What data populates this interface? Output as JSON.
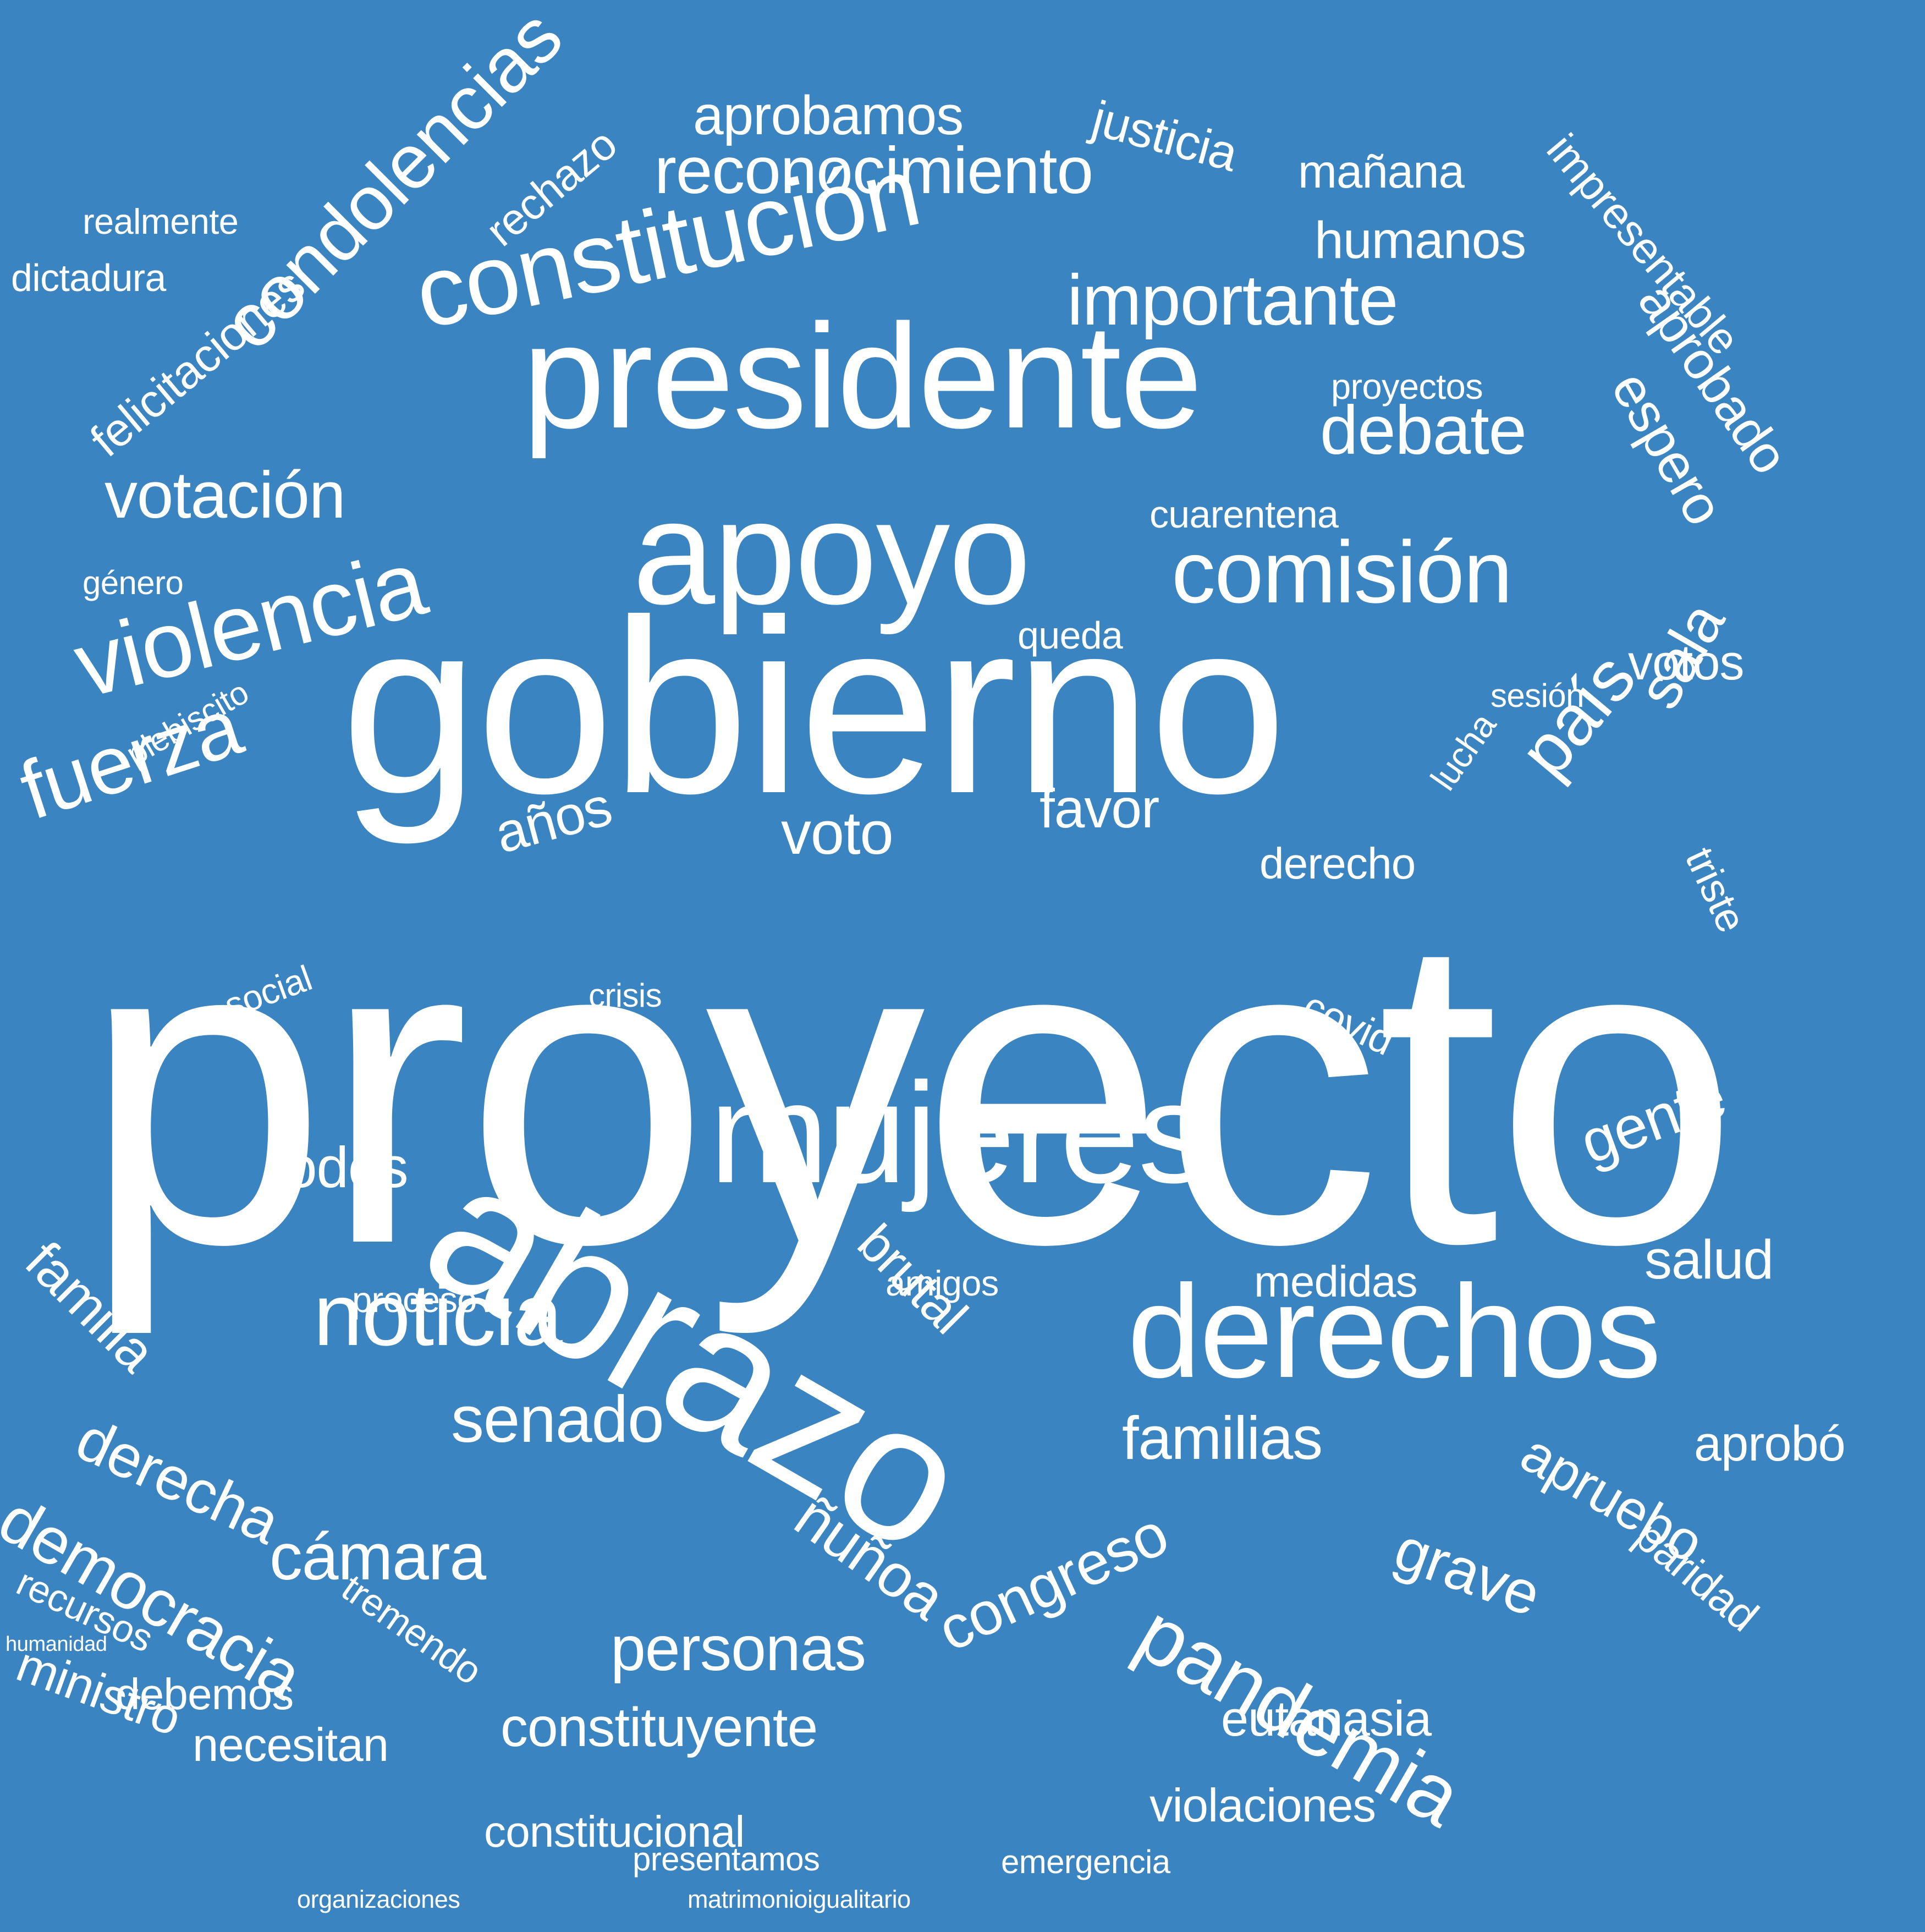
{
  "background_color": "#3a84c1",
  "text_color": "#ffffff",
  "words": [
    "proyecto",
    "gobierno",
    "abrazo",
    "presidente",
    "apoyo",
    "mujeres",
    "derechos",
    "constitución",
    "violencia",
    "comisión",
    "noticia",
    "fuerza",
    "importante",
    "condolencias",
    "reconocimiento",
    "debate",
    "votación",
    "país",
    "sala",
    "pandemia",
    "democracia",
    "derecha",
    "cámara",
    "ñuñoa",
    "congreso",
    "senado",
    "familias",
    "personas",
    "constituyente",
    "gente",
    "familia",
    "votos",
    "favor",
    "voto",
    "todos",
    "humanos",
    "aprobamos",
    "felicitaciones",
    "mañana",
    "espero",
    "aprobado",
    "impresentable",
    "justicia",
    "rechazo",
    "años",
    "salud",
    "apruebo",
    "triste",
    "paridad",
    "grave",
    "aprobó",
    "brutal",
    "medidas",
    "eutanasia",
    "necesitan",
    "constitucional",
    "violaciones",
    "ministro",
    "recursos",
    "tremendo",
    "debemos",
    "presentamos",
    "emergencia",
    "proceso",
    "amigos",
    "lucha",
    "sesión",
    "derecho",
    "queda",
    "covid",
    "crisis",
    "social",
    "plebiscito",
    "género",
    "dictadura",
    "realmente",
    "cuarentena",
    "proyectos",
    "humanidad",
    "matrimonioigualitario",
    "organizaciones"
  ]
}
